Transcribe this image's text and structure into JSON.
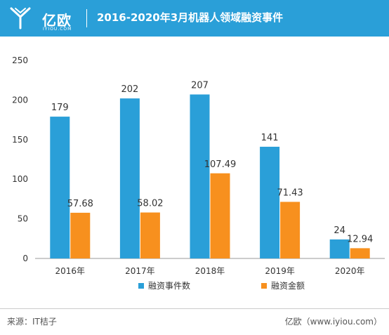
{
  "header": {
    "brand": "亿欧",
    "brand_sub": "IYIOU.COM",
    "title": "2016-2020年3月机器人领域融资事件"
  },
  "chart_data": {
    "type": "bar",
    "categories": [
      "2016年",
      "2017年",
      "2018年",
      "2019年",
      "2020年"
    ],
    "series": [
      {
        "name": "融资事件数",
        "values": [
          179,
          202,
          207,
          141,
          24
        ],
        "labels": [
          "179",
          "202",
          "207",
          "141",
          "24"
        ],
        "color": "#2a9fd8"
      },
      {
        "name": "融资金额",
        "values": [
          57.68,
          58.02,
          107.49,
          71.43,
          12.94
        ],
        "labels": [
          "57.68",
          "58.02",
          "107.49",
          "71.43",
          "12.94"
        ],
        "color": "#f7901e"
      }
    ],
    "ylim": [
      0,
      250
    ],
    "yticks": [
      "0",
      "50",
      "100",
      "150",
      "200",
      "250"
    ],
    "legend_position": "bottom",
    "grid": false
  },
  "footer": {
    "source": "来源：IT桔子",
    "credit": "亿欧（www.iyiou.com）"
  }
}
